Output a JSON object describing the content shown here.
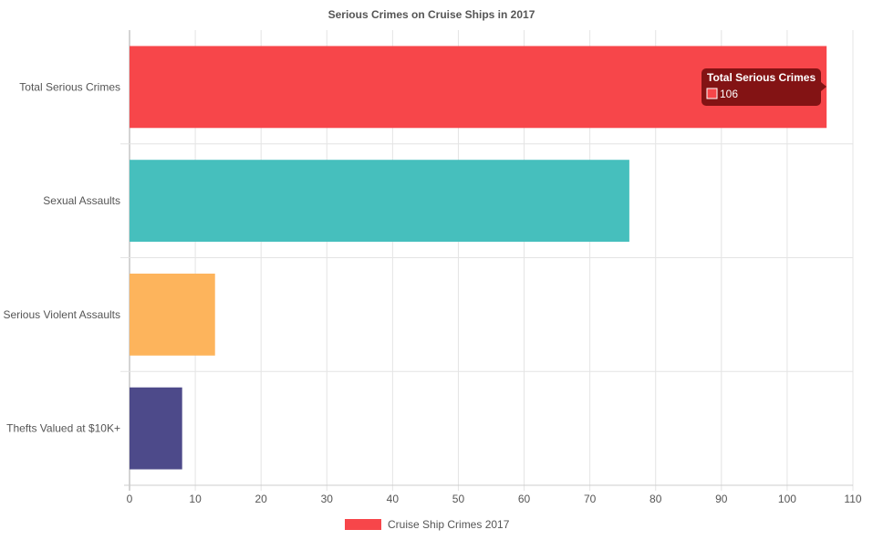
{
  "chart_data": {
    "type": "bar",
    "orientation": "horizontal",
    "title": "Serious Crimes on Cruise Ships in 2017",
    "categories": [
      "Total Serious Crimes",
      "Sexual Assaults",
      "Serious Violent Assaults",
      "Thefts Valued at $10K+"
    ],
    "series": [
      {
        "name": "Cruise Ship Crimes 2017",
        "values": [
          106,
          76,
          13,
          8
        ],
        "colors": [
          "#f7464a",
          "#46bfbd",
          "#fdb45c",
          "#4d4a8a"
        ]
      }
    ],
    "xlim": [
      0,
      110
    ],
    "xticks": [
      0,
      10,
      20,
      30,
      40,
      50,
      60,
      70,
      80,
      90,
      100,
      110
    ],
    "grid": true,
    "legend": "bottom",
    "legend_color": "#f7464a",
    "tooltip": {
      "title": "Total Serious Crimes",
      "value": "106",
      "swatch_color": "#f7464a"
    }
  }
}
